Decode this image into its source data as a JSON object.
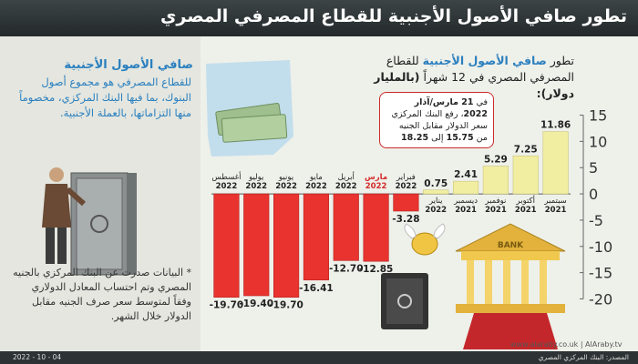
{
  "banner": {
    "title": "تطور صافي الأصول الأجنبية للقطاع المصرفي المصري"
  },
  "sidebar": {
    "heading": "صافي الأصول الأجنبية",
    "body": "للقطاع المصرفي هو مجموع أصول البنوك، بما فيها البنك المركزي، مخصوماً منها التزاماتها، بالعملة الأجنبية.",
    "note": "* البيانات صدرت عن البنك المركزي بالجنيه المصري وتم احتساب المعادل الدولاري وفقاً لمتوسط سعر صرف الجنيه مقابل الدولار خلال الشهر."
  },
  "chart_subtitle_part1": "تطور",
  "chart_subtitle_highlight": "صافي الأصول الأجنبية",
  "chart_subtitle_part2": "للقطاع المصرفي المصري في 12 شهراً",
  "chart_subtitle_unit": "(بالمليار دولار):",
  "callout": {
    "line1_a": "في",
    "line1_date": "21 مارس/آذار 2022",
    "line1_b": "،",
    "line2": "رفع البنك المركزي سعر الدولار مقابل الجنيه من",
    "from": "15.75",
    "to_word": "إلى",
    "to": "18.25"
  },
  "bank_sign": "BANK",
  "footer": {
    "source": "المصدر: البنك المركزي المصري",
    "date": "2022 - 10 - 04",
    "site": "www.alaraby.co.uk | AlAraby.tv"
  },
  "colors": {
    "positive": "#f1eea2",
    "negative": "#e8332f",
    "accent": "#2a7fbf",
    "highlight_label": "#d42a2a"
  },
  "chart_data": {
    "type": "bar",
    "categories": [
      {
        "month": "سبتمبر",
        "year": "2021"
      },
      {
        "month": "أكتوبر",
        "year": "2021"
      },
      {
        "month": "نوفمبر",
        "year": "2021"
      },
      {
        "month": "ديسمبر",
        "year": "2021"
      },
      {
        "month": "يناير",
        "year": "2022"
      },
      {
        "month": "فبراير",
        "year": "2022"
      },
      {
        "month": "مارس",
        "year": "2022"
      },
      {
        "month": "أبريل",
        "year": "2022"
      },
      {
        "month": "مايو",
        "year": "2022"
      },
      {
        "month": "يونيو",
        "year": "2022"
      },
      {
        "month": "يوليو",
        "year": "2022"
      },
      {
        "month": "أغسطس",
        "year": "2022"
      }
    ],
    "values": [
      11.86,
      7.25,
      5.29,
      2.41,
      0.75,
      -3.28,
      -12.85,
      -12.7,
      -16.41,
      -19.7,
      -19.4,
      -19.7
    ],
    "value_labels": [
      "11.86",
      "7.25",
      "5.29",
      "2.41",
      "0.75",
      "-3.28",
      "-12.85",
      "-12.70",
      "-16.41",
      "-19.70",
      "-19.40",
      "-19.70"
    ],
    "highlighted_category": "مارس",
    "y_ticks": [
      "15",
      "10",
      "5",
      "0",
      "-5",
      "-10",
      "-15",
      "-20"
    ],
    "y_tick_values": [
      15,
      10,
      5,
      0,
      -5,
      -10,
      -15,
      -20
    ],
    "ylim": [
      -22,
      17
    ],
    "y_axis_side": "right",
    "grid": false
  }
}
